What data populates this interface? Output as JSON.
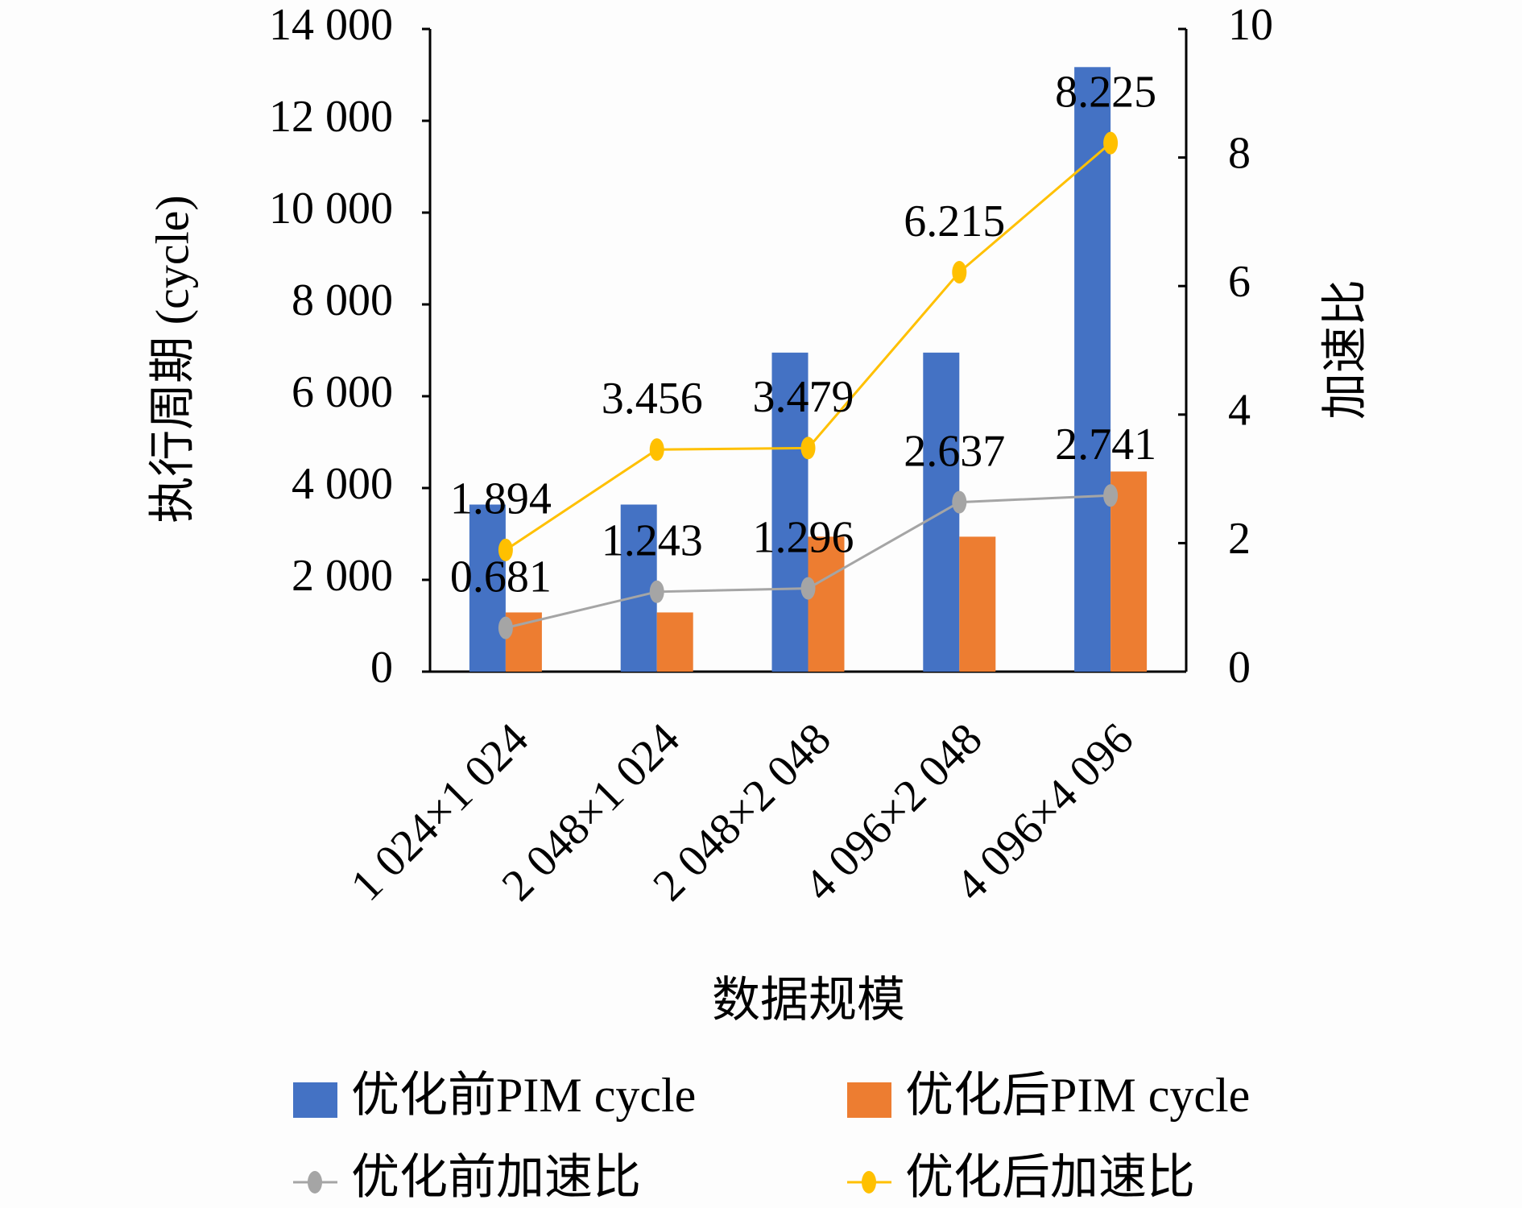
{
  "chart_data": {
    "type": "bar",
    "x_label": "数据规模",
    "y_label": "执行周期 (cycle)",
    "y2_label": "加速比",
    "categories": [
      "1 024×1 024",
      "2 048×1 024",
      "2 048×2 048",
      "4 096×2 048",
      "4 096×4 096"
    ],
    "series": [
      {
        "name": "优化前PIM cycle",
        "type": "bar",
        "color": "#4472c4",
        "values": [
          3640,
          3640,
          6950,
          6950,
          13170
        ]
      },
      {
        "name": "优化后PIM cycle",
        "type": "bar",
        "color": "#ed7d31",
        "values": [
          1290,
          1290,
          2940,
          2940,
          4360
        ]
      },
      {
        "name": "优化前加速比",
        "type": "line",
        "axis": "y2",
        "color": "#a5a5a5",
        "values": [
          0.681,
          1.243,
          1.296,
          2.637,
          2.741
        ]
      },
      {
        "name": "优化后加速比",
        "type": "line",
        "axis": "y2",
        "color": "#ffc000",
        "values": [
          1.894,
          3.456,
          3.479,
          6.215,
          8.225
        ]
      }
    ],
    "ylim": [
      0,
      14000
    ],
    "yticks": [
      0,
      {
        "value": 2000,
        "label": "2 000"
      },
      {
        "value": 4000,
        "label": "4 000"
      },
      {
        "value": 6000,
        "label": "6 000"
      },
      {
        "value": 8000,
        "label": "8 000"
      },
      {
        "value": 10000,
        "label": "10 000"
      },
      {
        "value": 12000,
        "label": "12 000"
      },
      {
        "value": 14000,
        "label": "14 000"
      }
    ],
    "y2lim": [
      0,
      10
    ],
    "y2ticks": [
      0,
      2,
      4,
      6,
      8,
      10
    ]
  }
}
